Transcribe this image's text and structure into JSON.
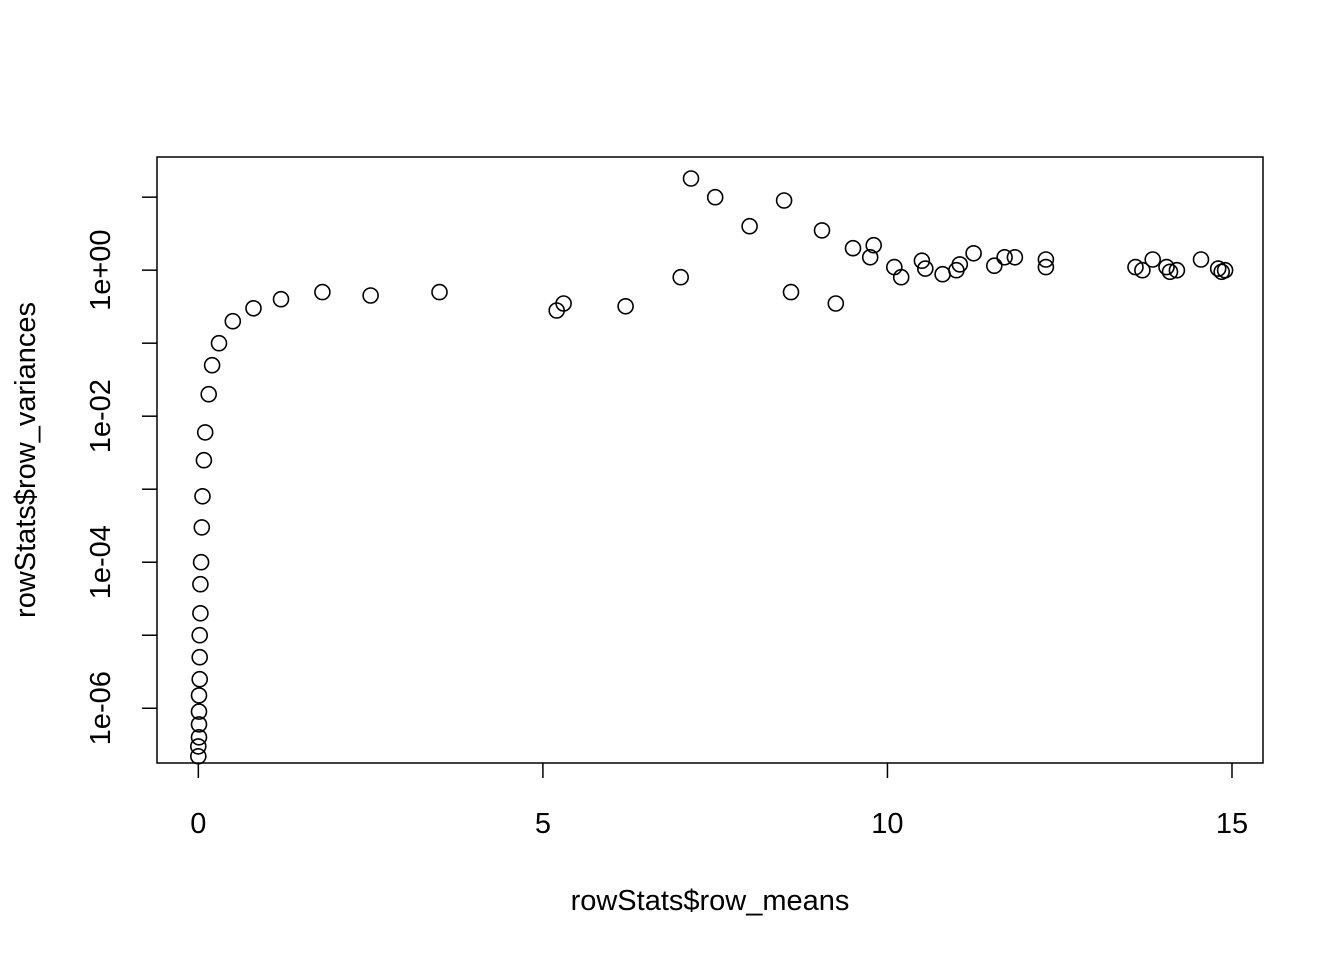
{
  "chart_data": {
    "type": "scatter",
    "title": "",
    "xlabel": "rowStats$row_means",
    "ylabel": "rowStats$row_variances",
    "xlim": [
      -0.6,
      15.45
    ],
    "ylim_log10": [
      -6.75,
      1.55
    ],
    "y_scale": "log10",
    "grid": false,
    "legend": "none",
    "marker": "open-circle",
    "colors": {
      "points": "#000000",
      "axes": "#000000",
      "background": "#ffffff"
    },
    "x_ticks": [
      {
        "value": 0,
        "label": "0"
      },
      {
        "value": 5,
        "label": "5"
      },
      {
        "value": 10,
        "label": "10"
      },
      {
        "value": 15,
        "label": "15"
      }
    ],
    "y_ticks_log10": [
      -6,
      -5,
      -4,
      -3,
      -2,
      -1,
      0,
      1
    ],
    "y_tick_labels": [
      {
        "log10": -6,
        "label": "1e-06"
      },
      {
        "log10": -4,
        "label": "1e-04"
      },
      {
        "log10": -2,
        "label": "1e-02"
      },
      {
        "log10": 0,
        "label": "1e+00"
      }
    ],
    "series": [
      {
        "points": [
          [
            0.0,
            2.2e-07
          ],
          [
            0.0,
            3e-07
          ],
          [
            0.01,
            4e-07
          ],
          [
            0.01,
            6e-07
          ],
          [
            0.01,
            9e-07
          ],
          [
            0.01,
            1.5e-06
          ],
          [
            0.02,
            2.5e-06
          ],
          [
            0.02,
            5e-06
          ],
          [
            0.02,
            1e-05
          ],
          [
            0.03,
            2e-05
          ],
          [
            0.03,
            5e-05
          ],
          [
            0.04,
            0.0001
          ],
          [
            0.05,
            0.0003
          ],
          [
            0.06,
            0.0008
          ],
          [
            0.08,
            0.0025
          ],
          [
            0.1,
            0.006
          ],
          [
            0.15,
            0.02
          ],
          [
            0.2,
            0.05
          ],
          [
            0.3,
            0.1
          ],
          [
            0.5,
            0.2
          ],
          [
            0.8,
            0.3
          ],
          [
            1.2,
            0.4
          ],
          [
            1.8,
            0.5
          ],
          [
            2.5,
            0.45
          ],
          [
            3.5,
            0.5
          ],
          [
            5.2,
            0.28
          ],
          [
            5.3,
            0.35
          ],
          [
            6.2,
            0.32
          ],
          [
            7.0,
            0.8
          ],
          [
            7.15,
            18.0
          ],
          [
            7.5,
            10.0
          ],
          [
            8.0,
            4.0
          ],
          [
            8.5,
            9.0
          ],
          [
            8.6,
            0.5
          ],
          [
            9.05,
            3.5
          ],
          [
            9.25,
            0.35
          ],
          [
            9.5,
            2.0
          ],
          [
            9.75,
            1.5
          ],
          [
            9.8,
            2.2
          ],
          [
            10.1,
            1.1
          ],
          [
            10.2,
            0.8
          ],
          [
            10.5,
            1.35
          ],
          [
            10.55,
            1.05
          ],
          [
            10.8,
            0.88
          ],
          [
            11.0,
            1.0
          ],
          [
            11.05,
            1.2
          ],
          [
            11.25,
            1.7
          ],
          [
            11.55,
            1.15
          ],
          [
            11.7,
            1.5
          ],
          [
            11.85,
            1.5
          ],
          [
            12.3,
            1.4
          ],
          [
            12.3,
            1.1
          ],
          [
            13.6,
            1.1
          ],
          [
            13.7,
            1.0
          ],
          [
            13.85,
            1.4
          ],
          [
            14.05,
            1.1
          ],
          [
            14.1,
            0.95
          ],
          [
            14.2,
            1.0
          ],
          [
            14.55,
            1.4
          ],
          [
            14.8,
            1.05
          ],
          [
            14.85,
            0.95
          ],
          [
            14.9,
            1.0
          ]
        ]
      }
    ]
  }
}
